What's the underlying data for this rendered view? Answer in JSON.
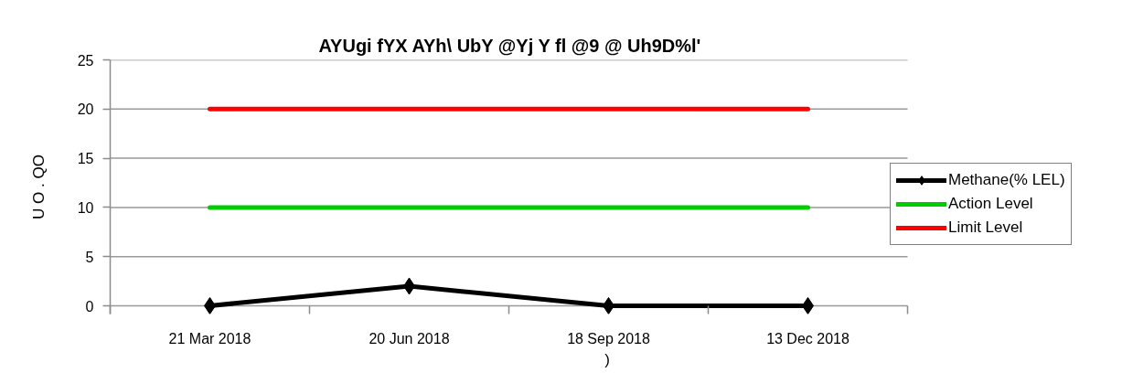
{
  "chart_data": {
    "type": "line",
    "title": "AYUgi fYX AYh\\ UbY @Yj Y fl @9 @ Uh9D%l'",
    "xlabel": ")",
    "ylabel": "U O . QO",
    "categories": [
      "21 Mar 2018",
      "20 Jun 2018",
      "18 Sep 2018",
      "13 Dec 2018"
    ],
    "series": [
      {
        "name": "Methane(% LEL)",
        "color": "#000000",
        "values": [
          0,
          2,
          0,
          0
        ],
        "marker": "diamond"
      },
      {
        "name": "Action Level",
        "color": "#00cc00",
        "values": [
          10,
          10,
          10,
          10
        ],
        "marker": "none"
      },
      {
        "name": "Limit Level",
        "color": "#ff0000",
        "values": [
          20,
          20,
          20,
          20
        ],
        "marker": "none"
      }
    ],
    "ylim": [
      0,
      25
    ],
    "yticks": [
      0,
      5,
      10,
      15,
      20,
      25
    ],
    "grid": "y",
    "legend": "right",
    "line_style": "solid"
  }
}
